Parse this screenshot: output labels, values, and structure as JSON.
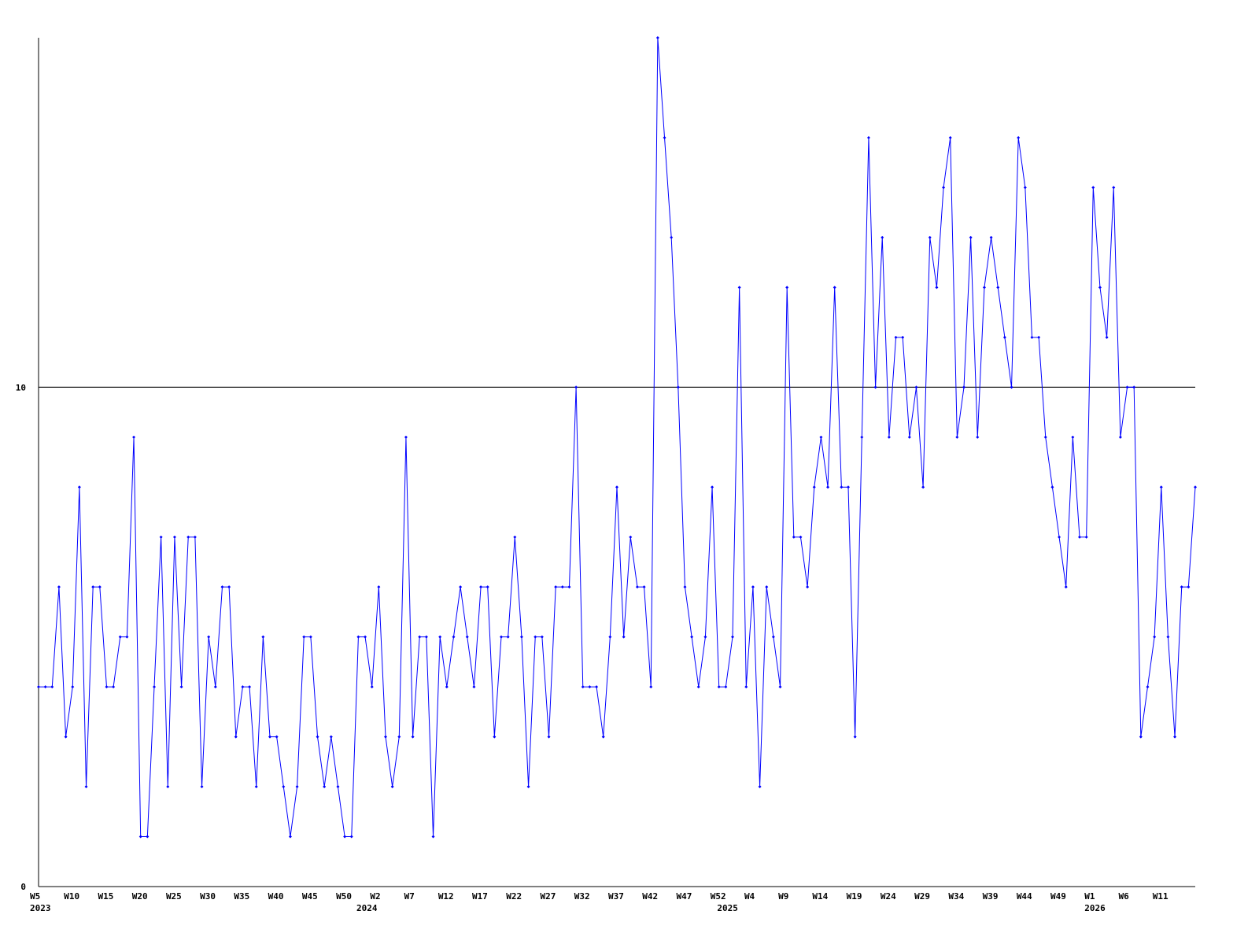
{
  "chart_data": {
    "type": "line",
    "categories": [
      "W5",
      null,
      null,
      null,
      null,
      "W10",
      null,
      null,
      null,
      null,
      "W15",
      null,
      null,
      null,
      null,
      "W20",
      null,
      null,
      null,
      null,
      "W25",
      null,
      null,
      null,
      null,
      "W30",
      null,
      null,
      null,
      null,
      "W35",
      null,
      null,
      null,
      null,
      "W40",
      null,
      null,
      null,
      null,
      "W45",
      null,
      null,
      null,
      null,
      "W50",
      null,
      null,
      null,
      null,
      "W2",
      null,
      null,
      null,
      null,
      "W7",
      null,
      null,
      null,
      null,
      "W12",
      null,
      null,
      null,
      null,
      "W17",
      null,
      null,
      null,
      null,
      "W22",
      null,
      null,
      null,
      null,
      "W27",
      null,
      null,
      null,
      null,
      "W32",
      null,
      null,
      null,
      null,
      "W37",
      null,
      null,
      null,
      null,
      "W42",
      null,
      null,
      null,
      null,
      "W47",
      null,
      null,
      null,
      null,
      "W52",
      null,
      null,
      null,
      null,
      "W4",
      null,
      null,
      null,
      null,
      "W9",
      null,
      null,
      null,
      null,
      "W14",
      null,
      null,
      null,
      null,
      "W19",
      null,
      null,
      null,
      null,
      "W24",
      null,
      null,
      null,
      null,
      "W29",
      null,
      null,
      null,
      null,
      "W34",
      null,
      null,
      null,
      null,
      "W39",
      null,
      null,
      null,
      null,
      "W44",
      null,
      null,
      null,
      null,
      "W49",
      null,
      null,
      null,
      null,
      "W1",
      null,
      null,
      null,
      null,
      "W6",
      null,
      null,
      null,
      null,
      "W11",
      null,
      null,
      null,
      null,
      null
    ],
    "category_years": [
      "2023",
      null,
      null,
      null,
      null,
      null,
      null,
      null,
      null,
      null,
      null,
      null,
      null,
      null,
      null,
      null,
      null,
      null,
      null,
      null,
      null,
      null,
      null,
      null,
      null,
      null,
      null,
      null,
      null,
      null,
      null,
      null,
      null,
      null,
      null,
      null,
      null,
      null,
      null,
      null,
      null,
      null,
      null,
      null,
      null,
      null,
      null,
      null,
      "2024",
      null,
      null,
      null,
      null,
      null,
      null,
      null,
      null,
      null,
      null,
      null,
      null,
      null,
      null,
      null,
      null,
      null,
      null,
      null,
      null,
      null,
      null,
      null,
      null,
      null,
      null,
      null,
      null,
      null,
      null,
      null,
      null,
      null,
      null,
      null,
      null,
      null,
      null,
      null,
      null,
      null,
      null,
      null,
      null,
      null,
      null,
      null,
      null,
      null,
      null,
      null,
      null,
      "2025",
      null,
      null,
      null,
      null,
      null,
      null,
      null,
      null,
      null,
      null,
      null,
      null,
      null,
      null,
      null,
      null,
      null,
      null,
      null,
      null,
      null,
      null,
      null,
      null,
      null,
      null,
      null,
      null,
      null,
      null,
      null,
      null,
      null,
      null,
      null,
      null,
      null,
      null,
      null,
      null,
      null,
      null,
      null,
      null,
      null,
      null,
      null,
      null,
      null,
      null,
      null,
      null,
      null,
      "2026",
      null,
      null,
      null,
      null,
      null,
      null,
      null,
      null,
      null,
      null,
      null,
      null,
      null,
      null,
      null,
      null
    ],
    "series": [
      {
        "color": "#0000ff",
        "values": [
          4,
          4,
          4,
          6,
          3,
          4,
          8,
          2,
          6,
          6,
          4,
          4,
          5,
          5,
          9,
          1,
          1,
          4,
          7,
          2,
          7,
          4,
          7,
          7,
          2,
          5,
          4,
          6,
          6,
          3,
          4,
          4,
          2,
          5,
          3,
          3,
          2,
          1,
          2,
          5,
          5,
          3,
          2,
          3,
          2,
          1,
          1,
          5,
          5,
          4,
          6,
          3,
          2,
          3,
          9,
          3,
          5,
          5,
          1,
          5,
          4,
          5,
          6,
          5,
          4,
          6,
          6,
          3,
          5,
          5,
          7,
          5,
          2,
          5,
          5,
          3,
          6,
          6,
          6,
          10,
          4,
          4,
          4,
          3,
          5,
          8,
          5,
          7,
          6,
          6,
          4,
          17,
          15,
          13,
          10,
          6,
          5,
          4,
          5,
          8,
          4,
          4,
          5,
          12,
          4,
          6,
          2,
          6,
          5,
          4,
          12,
          7,
          7,
          6,
          8,
          9,
          8,
          12,
          8,
          8,
          3,
          9,
          15,
          10,
          13,
          9,
          11,
          11,
          9,
          10,
          8,
          13,
          12,
          14,
          15,
          9,
          10,
          13,
          9,
          12,
          13,
          12,
          11,
          10,
          15,
          14,
          11,
          11,
          9,
          8,
          7,
          6,
          9,
          7,
          7,
          14,
          12,
          11,
          14,
          9,
          10,
          10,
          3,
          4,
          5,
          8,
          5,
          3,
          6,
          6,
          8
        ]
      }
    ],
    "ylim": [
      0,
      17
    ],
    "yticks": [
      0,
      10
    ],
    "grid": true
  }
}
